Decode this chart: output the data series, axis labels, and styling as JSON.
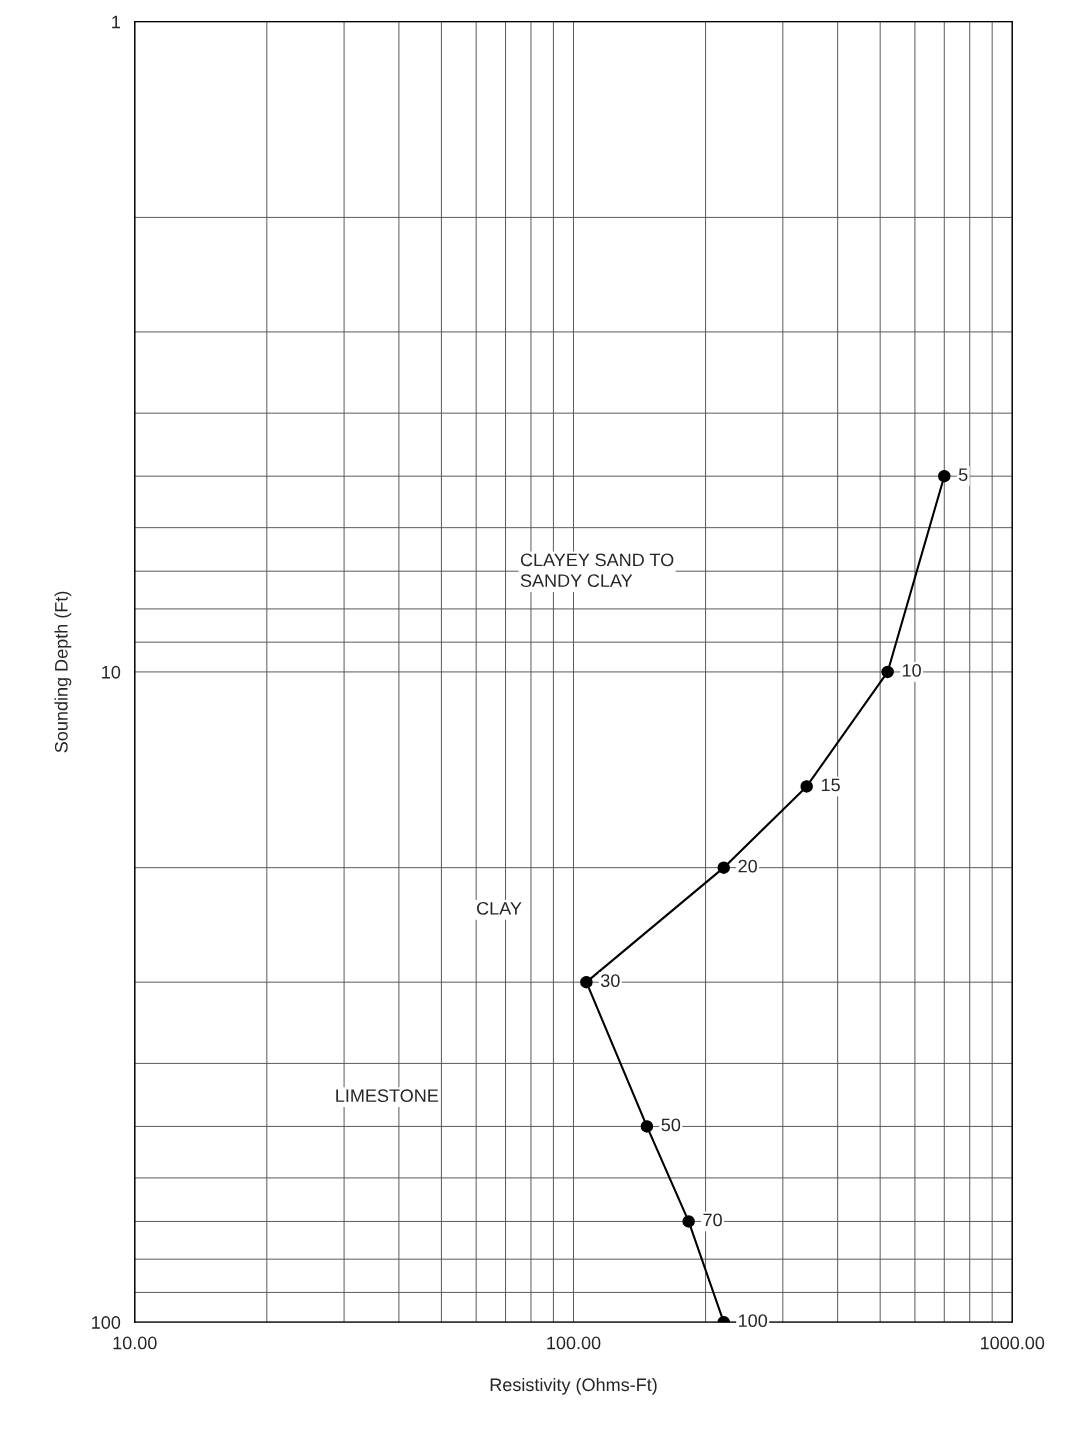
{
  "chart_data": {
    "type": "line",
    "xlabel": "Resistivity (Ohms-Ft)",
    "ylabel": "Sounding Depth (Ft)",
    "log": "xy",
    "xlim": [
      10,
      1000
    ],
    "ylim": [
      100,
      1
    ],
    "xticks": [
      {
        "value": 10,
        "label": "10.00"
      },
      {
        "value": 100,
        "label": "100.00"
      },
      {
        "value": 1000,
        "label": "1000.00"
      }
    ],
    "yticks": [
      1,
      10,
      100
    ],
    "grid": true,
    "marker": "circle",
    "line_style": "solid",
    "data_labels": true,
    "series": [
      {
        "color": "#000000",
        "x": [
          700,
          520,
          340,
          220,
          107,
          147,
          183,
          220
        ],
        "values": [
          5,
          10,
          15,
          20,
          30,
          50,
          70,
          100
        ]
      }
    ],
    "annotations": [
      "CLAYEY SAND TO\nSANDY CLAY",
      "CLAY",
      "LIMESTONE"
    ]
  }
}
